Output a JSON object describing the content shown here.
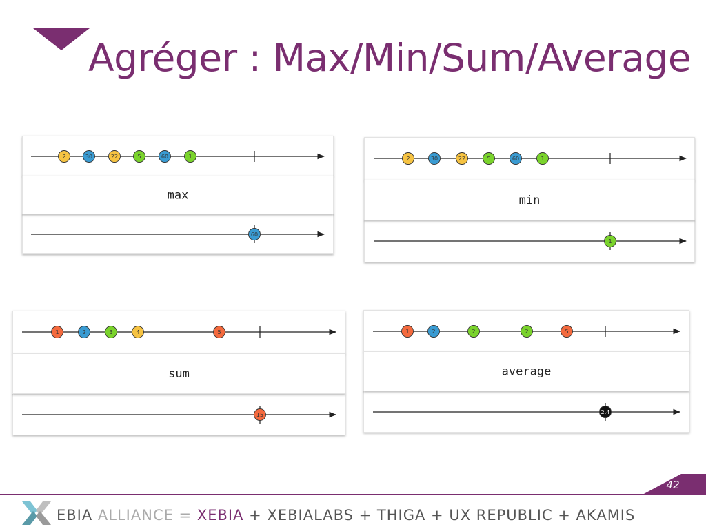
{
  "title": "Agréger : Max/Min/Sum/Average",
  "page_number": "42",
  "footer": {
    "part1": "EBIA",
    "part2": "ALLIANCE =",
    "part3": "XEBIA",
    "part4": "+ XEBIALABS + THIGA + UX REPUBLIC + AKAMIS"
  },
  "colors": {
    "brand": "#7a2e70",
    "yellow": "#f6c342",
    "blue": "#3a9bd2",
    "green": "#7ad32c",
    "red": "#f46a3e",
    "black": "#111111"
  },
  "panels": [
    {
      "operator": "max",
      "input": [
        {
          "label": "2",
          "color": "yellow"
        },
        {
          "label": "30",
          "color": "blue"
        },
        {
          "label": "22",
          "color": "yellow"
        },
        {
          "label": "5",
          "color": "green"
        },
        {
          "label": "60",
          "color": "blue"
        },
        {
          "label": "1",
          "color": "green"
        }
      ],
      "output": {
        "label": "60",
        "color": "blue"
      }
    },
    {
      "operator": "min",
      "input": [
        {
          "label": "2",
          "color": "yellow"
        },
        {
          "label": "30",
          "color": "blue"
        },
        {
          "label": "22",
          "color": "yellow"
        },
        {
          "label": "5",
          "color": "green"
        },
        {
          "label": "60",
          "color": "blue"
        },
        {
          "label": "1",
          "color": "green"
        }
      ],
      "output": {
        "label": "1",
        "color": "green"
      }
    },
    {
      "operator": "sum",
      "input": [
        {
          "label": "1",
          "color": "red"
        },
        {
          "label": "2",
          "color": "blue"
        },
        {
          "label": "3",
          "color": "green"
        },
        {
          "label": "4",
          "color": "yellow"
        },
        {
          "label": "5",
          "color": "red"
        }
      ],
      "output": {
        "label": "15",
        "color": "red"
      }
    },
    {
      "operator": "average",
      "input": [
        {
          "label": "1",
          "color": "red"
        },
        {
          "label": "2",
          "color": "blue"
        },
        {
          "label": "2",
          "color": "green"
        },
        {
          "label": "2",
          "color": "green"
        },
        {
          "label": "5",
          "color": "red"
        }
      ],
      "output": {
        "label": "2.4",
        "color": "black"
      }
    }
  ]
}
